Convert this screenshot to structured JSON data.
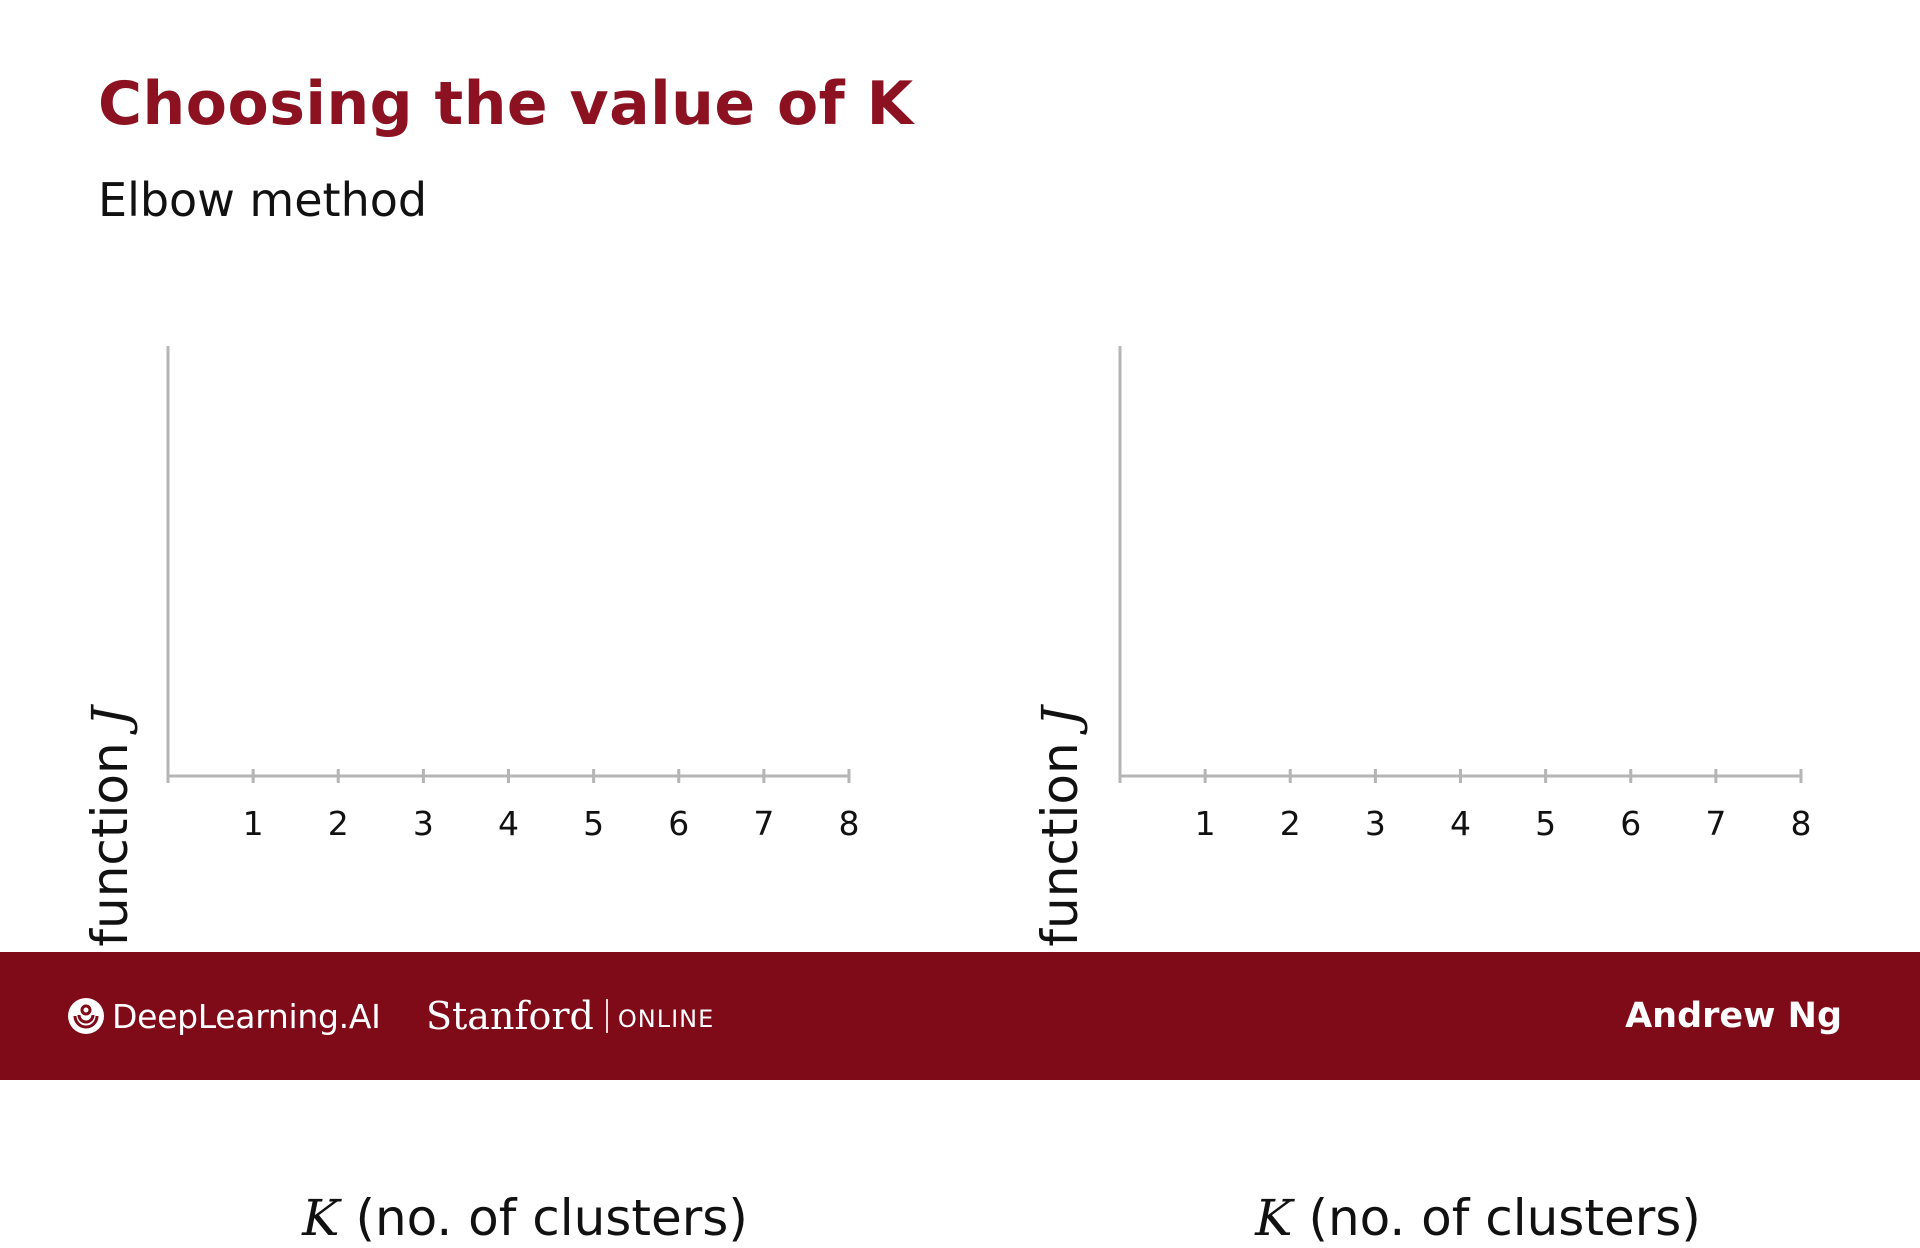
{
  "slide": {
    "title": "Choosing the value of K",
    "subtitle": "Elbow method"
  },
  "chart_data": [
    {
      "type": "line",
      "x": [
        1,
        2,
        3,
        4,
        5,
        6,
        7,
        8
      ],
      "series": [],
      "tick_labels": [
        "1",
        "2",
        "3",
        "4",
        "5",
        "6",
        "7",
        "8"
      ],
      "xlabel_symbol": "K",
      "xlabel": "(no. of clusters)",
      "ylabel": "Cost function",
      "ylabel_symbol": "J",
      "xlim": [
        0,
        8
      ],
      "grid": false
    },
    {
      "type": "line",
      "x": [
        1,
        2,
        3,
        4,
        5,
        6,
        7,
        8
      ],
      "series": [],
      "tick_labels": [
        "1",
        "2",
        "3",
        "4",
        "5",
        "6",
        "7",
        "8"
      ],
      "xlabel_symbol": "K",
      "xlabel": "(no. of clusters)",
      "ylabel": "Cost function",
      "ylabel_symbol": "J",
      "xlim": [
        0,
        8
      ],
      "grid": false
    }
  ],
  "footer": {
    "brand": "DeepLearning.AI",
    "partner": "Stanford",
    "partner_suffix": "ONLINE",
    "author": "Andrew Ng",
    "background": "#7f0a18"
  },
  "colors": {
    "title": "#8c1121",
    "axis": "#b5b5b5"
  }
}
